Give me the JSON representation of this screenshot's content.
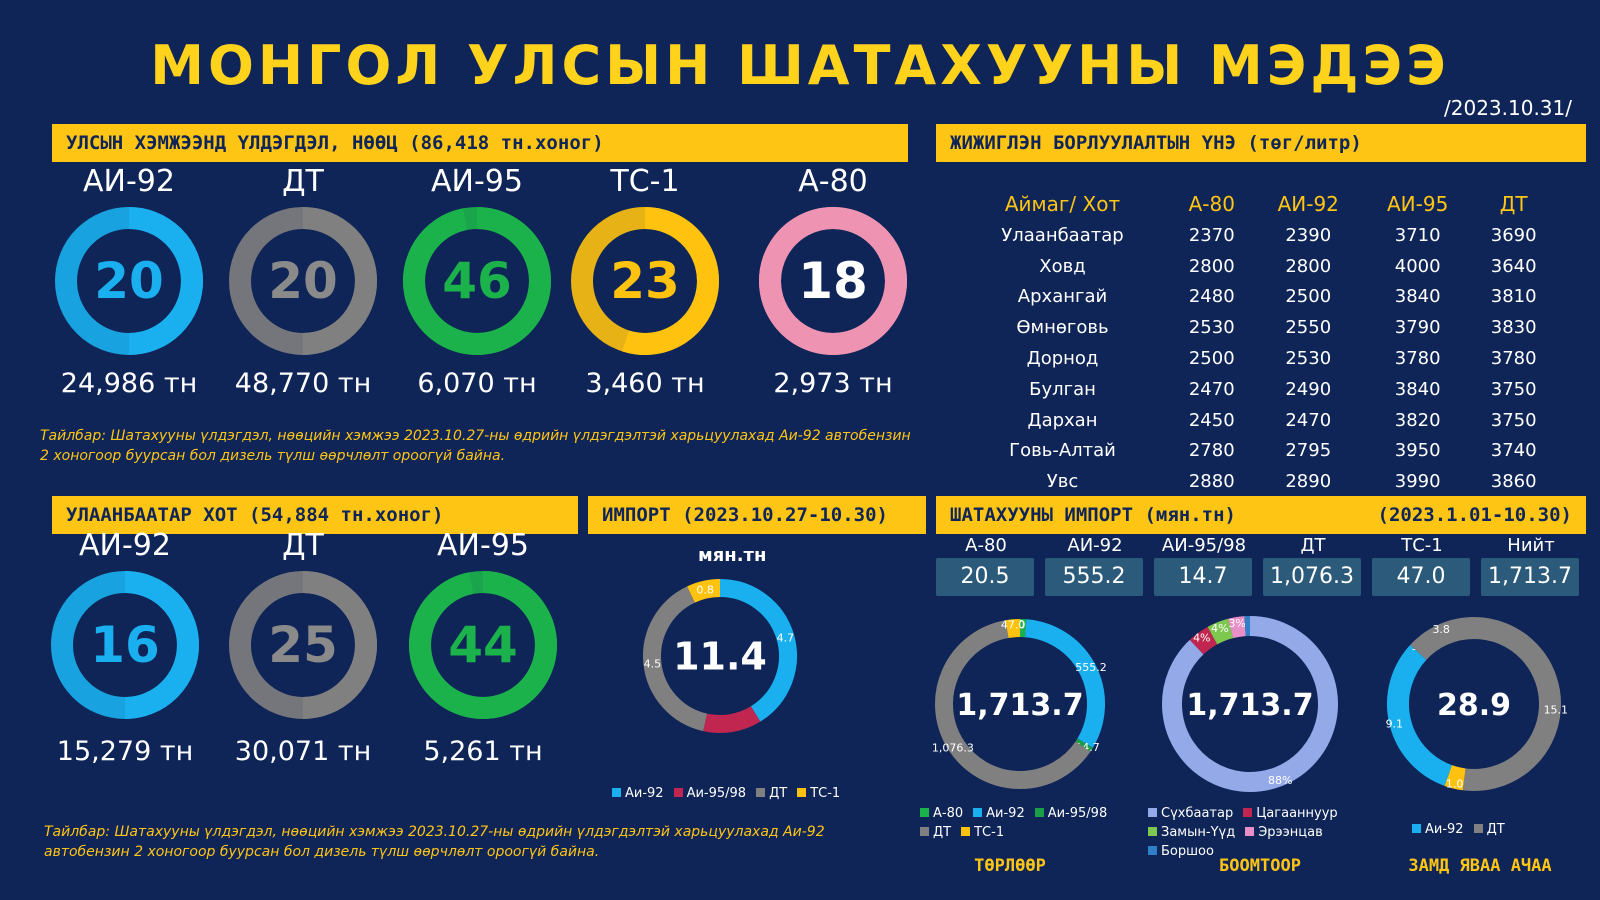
{
  "title": "МОНГОЛ УЛСЫН ШАТАХУУНЫ МЭДЭЭ",
  "date": "/2023.10.31/",
  "colors": {
    "ai92": "#1ab0f0",
    "dt": "#808080",
    "ai95": "#1cb24b",
    "ts1": "#ffc20e",
    "a80": "#ee93b2",
    "ai9598": "#c0264f",
    "bg": "#0f2557",
    "accent": "#ffc515"
  },
  "national": {
    "header": "УЛСЫН ХЭМЖЭЭНД ҮЛДЭГДЭЛ, НӨӨЦ (86,418 тн.хоног)",
    "items": [
      {
        "label": "АИ-92",
        "days": "20",
        "tons": "24,986 тн",
        "pct": 0.5,
        "color": "#1ab0f0",
        "text_color": "#1ab0f0"
      },
      {
        "label": "ДТ",
        "days": "20",
        "tons": "48,770 тн",
        "pct": 0.5,
        "color": "#808080",
        "text_color": "#8a8a8a"
      },
      {
        "label": "АИ-95",
        "days": "46",
        "tons": "6,070 тн",
        "pct": 0.97,
        "color": "#1cb24b",
        "text_color": "#1cb24b"
      },
      {
        "label": "ТС-1",
        "days": "23",
        "tons": "3,460 тн",
        "pct": 0.55,
        "color": "#ffc20e",
        "text_color": "#ffc20e"
      },
      {
        "label": "А-80",
        "days": "18",
        "tons": "2,973 тн",
        "pct": 1.0,
        "color": "#ee93b2",
        "text_color": "#ffffff"
      }
    ],
    "note": "Тайлбар: Шатахууны үлдэгдэл, нөөцийн хэмжээ 2023.10.27-ны өдрийн үлдэгдэлтэй харьцуулахад Аи-92 автобензин 2 хоногоор буурсан бол дизель түлш өөрчлөлт ороогүй байна."
  },
  "prices": {
    "header": "ЖИЖИГЛЭН БОРЛУУЛАЛТЫН ҮНЭ (төг/литр)",
    "columns": [
      "Аймаг/ Хот",
      "А-80",
      "АИ-92",
      "АИ-95",
      "ДТ"
    ],
    "rows": [
      [
        "Улаанбаатар",
        "2370",
        "2390",
        "3710",
        "3690"
      ],
      [
        "Ховд",
        "2800",
        "2800",
        "4000",
        "3640"
      ],
      [
        "Архангай",
        "2480",
        "2500",
        "3840",
        "3810"
      ],
      [
        "Өмнөговь",
        "2530",
        "2550",
        "3790",
        "3830"
      ],
      [
        "Дорнод",
        "2500",
        "2530",
        "3780",
        "3780"
      ],
      [
        "Булган",
        "2470",
        "2490",
        "3840",
        "3750"
      ],
      [
        "Дархан",
        "2450",
        "2470",
        "3820",
        "3750"
      ],
      [
        "Говь-Алтай",
        "2780",
        "2795",
        "3950",
        "3740"
      ],
      [
        "Увс",
        "2880",
        "2890",
        "3990",
        "3860"
      ]
    ]
  },
  "ub": {
    "header": "УЛААНБААТАР ХОТ (54,884 тн.хоног)",
    "items": [
      {
        "label": "АИ-92",
        "days": "16",
        "tons": "15,279 тн",
        "pct": 0.5,
        "color": "#1ab0f0",
        "text_color": "#1ab0f0"
      },
      {
        "label": "ДТ",
        "days": "25",
        "tons": "30,071 тн",
        "pct": 0.5,
        "color": "#808080",
        "text_color": "#8a8a8a"
      },
      {
        "label": "АИ-95",
        "days": "44",
        "tons": "5,261 тн",
        "pct": 0.97,
        "color": "#1cb24b",
        "text_color": "#1cb24b"
      }
    ],
    "note": "Тайлбар: Шатахууны үлдэгдэл, нөөцийн хэмжээ 2023.10.27-ны өдрийн үлдэгдэлтэй харьцуулахад Аи-92 автобензин 2 хоногоор буурсан бол дизель түлш өөрчлөлт ороогүй байна."
  },
  "import_week": {
    "header": "ИМПОРТ (2023.10.27-10.30)",
    "unit": "мян.тн",
    "total": "11.4",
    "legend": [
      "Аи-92",
      "Аи-95/98",
      "ДТ",
      "ТС-1"
    ]
  },
  "import_year": {
    "header_left": "ШАТАХУУНЫ ИМПОРТ (мян.тн)",
    "header_right": "(2023.1.01-10.30)",
    "boxes": [
      {
        "label": "А-80",
        "value": "20.5"
      },
      {
        "label": "АИ-92",
        "value": "555.2"
      },
      {
        "label": "АИ-95/98",
        "value": "14.7"
      },
      {
        "label": "ДТ",
        "value": "1,076.3"
      },
      {
        "label": "ТС-1",
        "value": "47.0"
      },
      {
        "label": "Нийт",
        "value": "1,713.7"
      }
    ],
    "type_total": "1,713.7",
    "type_legend": [
      "А-80",
      "Аи-92",
      "Аи-95/98",
      "ДТ",
      "ТС-1"
    ],
    "type_caption": "ТӨРЛӨӨР",
    "port_total": "1,713.7",
    "port_legend": [
      "Сүхбаатар",
      "Цагааннуур",
      "Замын-Үүд",
      "Эрээнцав",
      "Боршоо"
    ],
    "port_caption": "БООМТООР",
    "road_total": "28.9",
    "road_legend": [
      "Аи-92",
      "ДТ"
    ],
    "road_caption": "ЗАМД ЯВАА АЧАА"
  },
  "chart_data": [
    {
      "type": "pie",
      "title": "ИМПОРТ (2023.10.27-10.30)",
      "labels": [
        "Аи-92",
        "Аи-95/98",
        "ДТ",
        "ТС-1"
      ],
      "values": [
        4.7,
        1.4,
        4.5,
        0.8
      ],
      "data_labels": [
        "4.7",
        "",
        "4.5",
        "0.8"
      ],
      "colors": [
        "#1ab0f0",
        "#c0264f",
        "#808080",
        "#ffc20e"
      ],
      "center": "11.4"
    },
    {
      "type": "pie",
      "title": "ТӨРЛӨӨР",
      "labels": [
        "А-80",
        "Аи-92",
        "Аи-95/98",
        "ДТ",
        "ТС-1"
      ],
      "values": [
        20.5,
        555.2,
        14.7,
        1076.3,
        47.0
      ],
      "data_labels": [
        "20.5",
        "555.2",
        "14.7",
        "1,076.3",
        "47.0"
      ],
      "colors": [
        "#1cb24b",
        "#1ab0f0",
        "#1a9e48",
        "#808080",
        "#ffc20e"
      ],
      "center": "1,713.7"
    },
    {
      "type": "pie",
      "title": "БООМТООР",
      "labels": [
        "Сүхбаатар",
        "Цагааннуур",
        "Замын-Үүд",
        "Эрээнцав",
        "Боршоо"
      ],
      "values": [
        88,
        4,
        4,
        3,
        1
      ],
      "data_labels": [
        "88%",
        "4%",
        "4%",
        "3%",
        ""
      ],
      "colors": [
        "#94a9e8",
        "#c0264f",
        "#7ec850",
        "#e88fc8",
        "#2f80c8"
      ],
      "center": "1,713.7"
    },
    {
      "type": "pie",
      "title": "ЗАМД ЯВАА АЧАА",
      "labels": [
        "ДТ",
        "ТС-1",
        "Аи-92",
        "А-80",
        "Аи-95"
      ],
      "values": [
        15.1,
        1.0,
        9.1,
        0,
        3.8
      ],
      "data_labels": [
        "15.1",
        "1.0",
        "9.1",
        "-",
        "3.8"
      ],
      "colors": [
        "#808080",
        "#ffc20e",
        "#1ab0f0",
        "#1cb24b",
        "#808080"
      ],
      "center": "28.9"
    }
  ]
}
